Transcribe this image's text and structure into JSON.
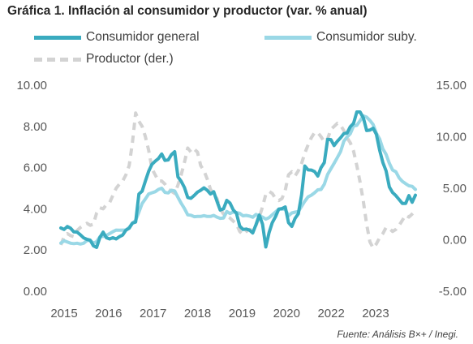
{
  "chart_data": {
    "type": "line",
    "title": "Gráfica 1. Inflación al consumidor y productor (var. % anual)",
    "source": "Fuente: Análisis B×+ /  Inegi.",
    "x_tick_labels": [
      "2015",
      "2016",
      "2017",
      "2018",
      "2019",
      "2020",
      "2022",
      "2023"
    ],
    "y_left": {
      "ticks": [
        "0.00",
        "2.00",
        "4.00",
        "6.00",
        "8.00",
        "10.00"
      ],
      "range": [
        0,
        10
      ]
    },
    "y_right": {
      "ticks": [
        "-5.00",
        "0.00",
        "5.00",
        "10.00",
        "15.00"
      ],
      "range": [
        -5,
        15
      ]
    },
    "grid": false,
    "legend_position": "top",
    "series": [
      {
        "name": "Consumidor general",
        "axis": "left",
        "color": "#3aabbf",
        "style": "solid",
        "values": [
          3.07,
          3.0,
          3.14,
          3.06,
          2.88,
          2.87,
          2.74,
          2.59,
          2.52,
          2.48,
          2.21,
          2.13,
          2.61,
          2.87,
          2.6,
          2.54,
          2.6,
          2.54,
          2.65,
          2.73,
          2.97,
          3.06,
          3.31,
          3.36,
          4.72,
          4.86,
          5.35,
          5.82,
          6.16,
          6.31,
          6.44,
          6.66,
          6.35,
          6.37,
          6.63,
          6.77,
          5.55,
          5.34,
          5.04,
          4.55,
          4.51,
          4.65,
          4.81,
          4.9,
          5.02,
          4.9,
          4.72,
          4.83,
          4.37,
          3.94,
          4.0,
          4.41,
          4.28,
          3.95,
          3.78,
          3.16,
          3.0,
          3.02,
          2.97,
          2.83,
          3.24,
          3.7,
          3.25,
          2.15,
          2.84,
          3.33,
          3.62,
          3.99,
          4.01,
          4.09,
          3.33,
          3.15,
          3.54,
          3.76,
          4.67,
          6.08,
          5.89,
          5.88,
          5.81,
          5.59,
          6.0,
          6.24,
          7.37,
          7.36,
          7.07,
          7.28,
          7.45,
          7.65,
          7.68,
          7.99,
          8.15,
          8.7,
          8.7,
          8.41,
          7.8,
          7.82,
          7.91,
          7.62,
          6.85,
          6.25,
          5.84,
          5.06,
          4.79,
          4.64,
          4.45,
          4.26,
          4.26,
          4.64,
          4.32,
          4.66
        ]
      },
      {
        "name": "Consumidor suby.",
        "axis": "left",
        "color": "#9ad8e6",
        "style": "solid",
        "values": [
          2.34,
          2.45,
          2.39,
          2.33,
          2.31,
          2.33,
          2.29,
          2.33,
          2.46,
          2.47,
          2.34,
          2.41,
          2.64,
          2.66,
          2.71,
          2.8,
          2.89,
          2.97,
          2.96,
          2.97,
          2.97,
          3.1,
          3.29,
          3.44,
          3.84,
          4.26,
          4.48,
          4.72,
          4.78,
          4.83,
          4.94,
          5.0,
          4.8,
          4.77,
          4.9,
          4.87,
          4.56,
          4.27,
          4.02,
          3.71,
          3.69,
          3.62,
          3.63,
          3.63,
          3.67,
          3.63,
          3.63,
          3.68,
          3.6,
          3.54,
          3.55,
          3.87,
          3.77,
          3.85,
          3.82,
          3.78,
          3.66,
          3.68,
          3.65,
          3.59,
          3.73,
          3.66,
          3.6,
          3.5,
          3.57,
          3.71,
          3.85,
          3.99,
          3.99,
          3.98,
          3.66,
          3.8,
          3.84,
          3.87,
          4.12,
          4.37,
          4.58,
          4.66,
          4.78,
          4.92,
          4.94,
          5.19,
          5.67,
          5.94,
          6.21,
          6.49,
          6.78,
          7.28,
          7.49,
          7.65,
          8.02,
          8.05,
          8.28,
          8.51,
          8.45,
          8.29,
          8.09,
          7.67,
          7.39,
          6.91,
          6.64,
          6.21,
          5.88,
          5.8,
          5.5,
          5.33,
          5.22,
          5.12,
          5.09,
          4.94
        ]
      },
      {
        "name": "Productor (der.)",
        "axis": "right",
        "color": "#d3d3d3",
        "style": "dashed",
        "values": [
          -0.5,
          0.3,
          0.6,
          0.4,
          0.3,
          0.9,
          1.2,
          1.4,
          1.6,
          1.4,
          1.5,
          2.6,
          3.1,
          3.0,
          3.4,
          3.6,
          4.3,
          5.0,
          5.4,
          5.7,
          6.3,
          7.2,
          9.4,
          12.3,
          11.5,
          11.0,
          10.0,
          8.7,
          6.9,
          6.3,
          5.7,
          5.7,
          5.4,
          4.9,
          4.7,
          4.5,
          5.3,
          6.3,
          7.5,
          8.9,
          8.5,
          8.8,
          8.5,
          7.2,
          6.7,
          5.9,
          4.9,
          4.4,
          4.0,
          3.0,
          2.5,
          2.3,
          2.1,
          1.8,
          1.5,
          0.8,
          0.5,
          0.8,
          1.0,
          0.9,
          1.4,
          2.2,
          3.2,
          4.4,
          4.7,
          4.5,
          4.0,
          3.8,
          4.0,
          4.8,
          6.3,
          6.6,
          6.2,
          6.7,
          7.4,
          8.4,
          9.2,
          9.9,
          10.4,
          10.4,
          10.0,
          9.5,
          9.8,
          10.7,
          11.0,
          11.3,
          11.1,
          10.6,
          9.9,
          9.4,
          8.6,
          7.2,
          5.6,
          3.7,
          1.5,
          -0.2,
          -0.8,
          -0.4,
          0.2,
          0.6,
          1.2,
          1.1,
          0.8,
          1.0,
          1.4,
          1.9,
          2.4,
          2.2,
          2.5,
          2.8
        ]
      }
    ]
  }
}
